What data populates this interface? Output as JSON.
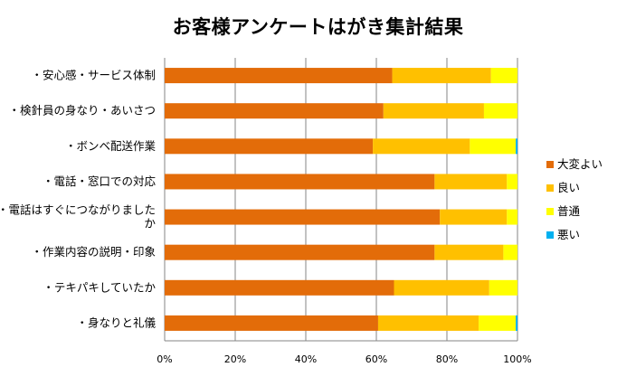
{
  "chart_data": {
    "type": "bar",
    "orientation": "horizontal",
    "stacked": "percent",
    "title": "お客様アンケートはがき集計結果",
    "categories": [
      [
        "・安心感・サービス体制"
      ],
      [
        "・検針員の身なり・あいさつ"
      ],
      [
        "・ボンベ配送作業"
      ],
      [
        "・電話・窓口での対応"
      ],
      [
        "・電話はすぐにつながりました",
        "か"
      ],
      [
        "・作業内容の説明・印象"
      ],
      [
        "・テキパキしていたか"
      ],
      [
        "・身なりと礼儀"
      ]
    ],
    "series": [
      {
        "name": "大変よい",
        "color": "#E36C09",
        "values": [
          64.5,
          62,
          59,
          76.5,
          78,
          76.5,
          65,
          60.5
        ]
      },
      {
        "name": "良い",
        "color": "#FFC000",
        "values": [
          28,
          28.5,
          27.5,
          20.5,
          19,
          19.5,
          27,
          28.5
        ]
      },
      {
        "name": "普通",
        "color": "#FFFF00",
        "values": [
          7.5,
          9.5,
          13,
          3,
          3,
          4,
          8,
          10.5
        ]
      },
      {
        "name": "悪い",
        "color": "#00B0F0",
        "values": [
          0,
          0,
          0.5,
          0,
          0,
          0,
          0,
          0.5
        ]
      }
    ],
    "xlim": [
      0,
      100
    ],
    "xticks": [
      "0%",
      "20%",
      "40%",
      "60%",
      "80%",
      "100%"
    ],
    "grid": true,
    "legend_position": "right"
  }
}
